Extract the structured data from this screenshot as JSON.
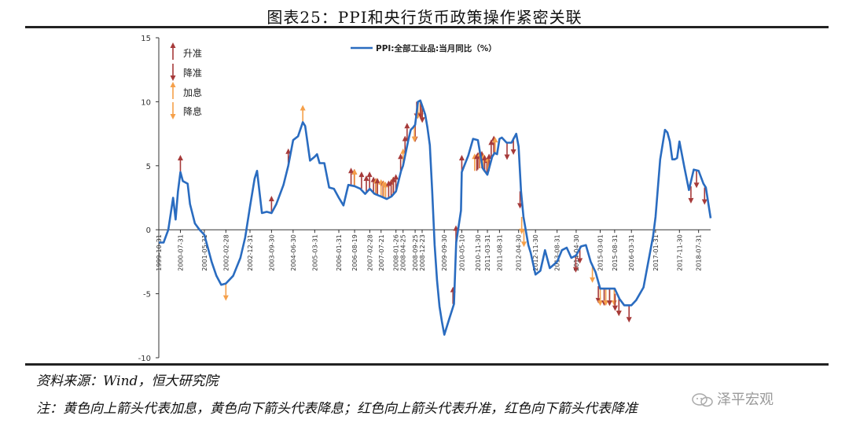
{
  "header": {
    "title": "图表25：PPI和央行货币政策操作紧密关联"
  },
  "footer": {
    "source": "资料来源：Wind，恒大研究院",
    "note": "注：黄色向上箭头代表加息，黄色向下箭头代表降息；红色向上箭头代表升准，红色向下箭头代表降准",
    "watermark": "泽平宏观"
  },
  "colors": {
    "line": "#2a6cc0",
    "rrr": "#a63a3a",
    "rate": "#f5a04a",
    "axis": "#333333",
    "text": "#111111"
  },
  "chart_data": {
    "type": "line",
    "title": "",
    "xlabel": "",
    "ylabel": "",
    "ylim": [
      -10,
      15
    ],
    "yticks": [
      -10,
      -5,
      0,
      5,
      10,
      15
    ],
    "x_range": [
      "1999-10-31",
      "2018-12-31"
    ],
    "xticks": [
      "1999-10-31",
      "2000-07-31",
      "2001-05-31",
      "2002-02-28",
      "2002-12-31",
      "2003-09-30",
      "2004-06-30",
      "2005-03-31",
      "2006-01-31",
      "2006-08-19",
      "2007-02-28",
      "2007-07-21",
      "2008-01-26",
      "2008-04-25",
      "2008-09-25",
      "2008-12-23",
      "2009-09-30",
      "2010-05-10",
      "2010-11-30",
      "2011-03-31",
      "2011-08-31",
      "2012-04-30",
      "2012-11-30",
      "2013-08-31",
      "2014-04-30",
      "2015-03-01",
      "2015-08-31",
      "2016-03-31",
      "2017-01-31",
      "2017-11-30",
      "2018-07-31"
    ],
    "grid": false,
    "legend": {
      "position": "top-center",
      "entries": [
        {
          "name": "PPI:全部工业品:当月同比（%）",
          "kind": "line"
        },
        {
          "name": "升准",
          "kind": "rrr-up"
        },
        {
          "name": "降准",
          "kind": "rrr-down"
        },
        {
          "name": "加息",
          "kind": "rate-up"
        },
        {
          "name": "降息",
          "kind": "rate-down"
        }
      ]
    },
    "series": [
      {
        "name": "PPI:全部工业品:当月同比（%）",
        "points": [
          [
            "1999-10-31",
            -1.0
          ],
          [
            "1999-12-31",
            -1.0
          ],
          [
            "2000-02-29",
            0.0
          ],
          [
            "2000-04-30",
            2.5
          ],
          [
            "2000-05-31",
            0.8
          ],
          [
            "2000-06-30",
            3.0
          ],
          [
            "2000-07-31",
            4.5
          ],
          [
            "2000-08-31",
            3.8
          ],
          [
            "2000-10-31",
            3.6
          ],
          [
            "2000-11-30",
            2.0
          ],
          [
            "2001-01-31",
            0.5
          ],
          [
            "2001-03-31",
            0.0
          ],
          [
            "2001-05-31",
            -0.4
          ],
          [
            "2001-08-31",
            -2.5
          ],
          [
            "2001-10-31",
            -3.6
          ],
          [
            "2001-12-31",
            -4.3
          ],
          [
            "2002-02-28",
            -4.2
          ],
          [
            "2002-05-31",
            -3.6
          ],
          [
            "2002-08-31",
            -2.2
          ],
          [
            "2002-10-31",
            -0.6
          ],
          [
            "2002-12-31",
            1.8
          ],
          [
            "2003-02-28",
            4.0
          ],
          [
            "2003-03-31",
            4.6
          ],
          [
            "2003-05-31",
            1.3
          ],
          [
            "2003-07-31",
            1.4
          ],
          [
            "2003-09-30",
            1.3
          ],
          [
            "2003-11-30",
            2.0
          ],
          [
            "2004-02-29",
            3.5
          ],
          [
            "2004-04-30",
            5.0
          ],
          [
            "2004-06-30",
            7.0
          ],
          [
            "2004-08-31",
            7.3
          ],
          [
            "2004-10-31",
            8.4
          ],
          [
            "2004-11-30",
            8.1
          ],
          [
            "2005-01-31",
            5.4
          ],
          [
            "2005-03-31",
            5.7
          ],
          [
            "2005-04-30",
            5.9
          ],
          [
            "2005-05-31",
            5.2
          ],
          [
            "2005-07-31",
            5.2
          ],
          [
            "2005-09-30",
            3.3
          ],
          [
            "2005-11-30",
            3.2
          ],
          [
            "2006-01-31",
            2.5
          ],
          [
            "2006-03-31",
            1.9
          ],
          [
            "2006-05-31",
            3.5
          ],
          [
            "2006-08-19",
            3.4
          ],
          [
            "2006-10-31",
            3.2
          ],
          [
            "2006-12-31",
            2.8
          ],
          [
            "2007-02-28",
            3.2
          ],
          [
            "2007-04-30",
            2.8
          ],
          [
            "2007-07-21",
            2.6
          ],
          [
            "2007-09-30",
            2.4
          ],
          [
            "2007-11-30",
            2.6
          ],
          [
            "2008-01-26",
            3.0
          ],
          [
            "2008-03-31",
            4.6
          ],
          [
            "2008-04-25",
            5.0
          ],
          [
            "2008-06-30",
            7.0
          ],
          [
            "2008-07-31",
            7.8
          ],
          [
            "2008-08-31",
            8.0
          ],
          [
            "2008-09-25",
            8.2
          ],
          [
            "2008-10-31",
            10.0
          ],
          [
            "2008-11-30",
            10.1
          ],
          [
            "2008-12-23",
            9.7
          ],
          [
            "2009-01-31",
            9.0
          ],
          [
            "2009-02-28",
            8.0
          ],
          [
            "2009-03-31",
            6.6
          ],
          [
            "2009-04-30",
            3.0
          ],
          [
            "2009-05-31",
            -1.2
          ],
          [
            "2009-06-30",
            -4.0
          ],
          [
            "2009-07-31",
            -6.0
          ],
          [
            "2009-08-31",
            -7.2
          ],
          [
            "2009-09-30",
            -8.2
          ],
          [
            "2009-11-30",
            -7.0
          ],
          [
            "2010-01-31",
            -5.8
          ],
          [
            "2010-02-28",
            -1.0
          ],
          [
            "2010-04-30",
            1.5
          ],
          [
            "2010-05-10",
            4.5
          ],
          [
            "2010-07-31",
            5.8
          ],
          [
            "2010-09-30",
            7.1
          ],
          [
            "2010-11-30",
            7.0
          ],
          [
            "2011-01-31",
            4.8
          ],
          [
            "2011-03-31",
            4.3
          ],
          [
            "2011-05-31",
            5.7
          ],
          [
            "2011-06-30",
            6.0
          ],
          [
            "2011-07-31",
            5.9
          ],
          [
            "2011-08-31",
            7.1
          ],
          [
            "2011-09-30",
            7.2
          ],
          [
            "2011-11-30",
            6.8
          ],
          [
            "2012-01-31",
            6.8
          ],
          [
            "2012-03-31",
            7.5
          ],
          [
            "2012-04-30",
            6.5
          ],
          [
            "2012-05-31",
            3.0
          ],
          [
            "2012-06-30",
            1.0
          ],
          [
            "2012-08-31",
            -1.2
          ],
          [
            "2012-09-30",
            -1.8
          ],
          [
            "2012-11-30",
            -3.5
          ],
          [
            "2013-01-31",
            -3.2
          ],
          [
            "2013-03-31",
            -1.6
          ],
          [
            "2013-05-31",
            -3.0
          ],
          [
            "2013-08-31",
            -2.5
          ],
          [
            "2013-10-31",
            -1.6
          ],
          [
            "2013-12-31",
            -1.4
          ],
          [
            "2014-02-28",
            -2.2
          ],
          [
            "2014-04-30",
            -2.0
          ],
          [
            "2014-06-30",
            -1.3
          ],
          [
            "2014-08-31",
            -1.2
          ],
          [
            "2014-10-31",
            -2.5
          ],
          [
            "2014-12-31",
            -3.3
          ],
          [
            "2015-03-01",
            -4.6
          ],
          [
            "2015-05-31",
            -4.6
          ],
          [
            "2015-08-31",
            -4.6
          ],
          [
            "2015-10-31",
            -5.4
          ],
          [
            "2015-12-31",
            -5.9
          ],
          [
            "2016-03-31",
            -5.9
          ],
          [
            "2016-05-31",
            -5.5
          ],
          [
            "2016-08-31",
            -4.5
          ],
          [
            "2016-10-31",
            -2.5
          ],
          [
            "2016-12-31",
            -0.5
          ],
          [
            "2017-01-31",
            1.0
          ],
          [
            "2017-03-31",
            5.5
          ],
          [
            "2017-05-31",
            7.8
          ],
          [
            "2017-06-30",
            7.6
          ],
          [
            "2017-07-31",
            6.9
          ],
          [
            "2017-08-31",
            5.5
          ],
          [
            "2017-09-30",
            5.5
          ],
          [
            "2017-10-31",
            5.6
          ],
          [
            "2017-11-30",
            6.9
          ],
          [
            "2018-01-31",
            4.9
          ],
          [
            "2018-03-31",
            3.1
          ],
          [
            "2018-05-31",
            4.7
          ],
          [
            "2018-07-31",
            4.6
          ],
          [
            "2018-09-30",
            3.6
          ],
          [
            "2018-10-31",
            3.3
          ],
          [
            "2018-12-31",
            0.9
          ]
        ]
      }
    ],
    "markers": [
      {
        "x": "2000-07-31",
        "y": 4.5,
        "type": "rrr-up"
      },
      {
        "x": "2002-02-28",
        "y": -4.2,
        "type": "rate-down"
      },
      {
        "x": "2003-09-30",
        "y": 1.3,
        "type": "rrr-up"
      },
      {
        "x": "2004-04-30",
        "y": 5.0,
        "type": "rrr-up"
      },
      {
        "x": "2004-10-31",
        "y": 8.4,
        "type": "rate-up"
      },
      {
        "x": "2006-07-05",
        "y": 3.5,
        "type": "rrr-up"
      },
      {
        "x": "2006-08-15",
        "y": 3.4,
        "type": "rrr-up"
      },
      {
        "x": "2006-08-19",
        "y": 3.4,
        "type": "rate-up"
      },
      {
        "x": "2006-11-15",
        "y": 3.2,
        "type": "rrr-up"
      },
      {
        "x": "2007-01-15",
        "y": 2.9,
        "type": "rrr-up"
      },
      {
        "x": "2007-02-25",
        "y": 3.2,
        "type": "rrr-up"
      },
      {
        "x": "2007-04-16",
        "y": 2.8,
        "type": "rrr-up"
      },
      {
        "x": "2007-05-15",
        "y": 2.7,
        "type": "rrr-up"
      },
      {
        "x": "2007-05-19",
        "y": 2.7,
        "type": "rate-up"
      },
      {
        "x": "2007-06-05",
        "y": 2.7,
        "type": "rrr-up"
      },
      {
        "x": "2007-07-21",
        "y": 2.6,
        "type": "rate-up"
      },
      {
        "x": "2007-08-15",
        "y": 2.5,
        "type": "rrr-up"
      },
      {
        "x": "2007-08-22",
        "y": 2.5,
        "type": "rate-up"
      },
      {
        "x": "2007-09-15",
        "y": 2.4,
        "type": "rrr-up"
      },
      {
        "x": "2007-09-15",
        "y": 2.4,
        "type": "rate-up"
      },
      {
        "x": "2007-10-25",
        "y": 2.5,
        "type": "rrr-up"
      },
      {
        "x": "2007-11-26",
        "y": 2.6,
        "type": "rrr-up"
      },
      {
        "x": "2007-12-21",
        "y": 2.8,
        "type": "rate-up"
      },
      {
        "x": "2007-12-25",
        "y": 2.8,
        "type": "rrr-up"
      },
      {
        "x": "2008-01-25",
        "y": 3.0,
        "type": "rrr-up"
      },
      {
        "x": "2008-03-25",
        "y": 4.6,
        "type": "rrr-up"
      },
      {
        "x": "2008-04-25",
        "y": 5.0,
        "type": "rate-up"
      },
      {
        "x": "2008-05-20",
        "y": 6.0,
        "type": "rrr-up"
      },
      {
        "x": "2008-06-15",
        "y": 7.0,
        "type": "rrr-up"
      },
      {
        "x": "2008-09-25",
        "y": 8.2,
        "type": "rrr-down"
      },
      {
        "x": "2008-09-16",
        "y": 8.2,
        "type": "rate-down"
      },
      {
        "x": "2008-10-15",
        "y": 10.0,
        "type": "rrr-down"
      },
      {
        "x": "2008-10-30",
        "y": 10.0,
        "type": "rate-down"
      },
      {
        "x": "2008-11-27",
        "y": 10.1,
        "type": "rate-down"
      },
      {
        "x": "2008-12-05",
        "y": 10.0,
        "type": "rrr-down"
      },
      {
        "x": "2008-12-23",
        "y": 9.7,
        "type": "rate-down"
      },
      {
        "x": "2008-12-25",
        "y": 9.7,
        "type": "rrr-down"
      },
      {
        "x": "2010-01-18",
        "y": -5.8,
        "type": "rrr-up"
      },
      {
        "x": "2010-02-25",
        "y": -1.0,
        "type": "rrr-up"
      },
      {
        "x": "2010-05-10",
        "y": 4.5,
        "type": "rrr-up"
      },
      {
        "x": "2010-10-20",
        "y": 4.6,
        "type": "rate-up"
      },
      {
        "x": "2010-11-16",
        "y": 4.6,
        "type": "rrr-up"
      },
      {
        "x": "2010-11-29",
        "y": 4.7,
        "type": "rrr-up"
      },
      {
        "x": "2010-12-20",
        "y": 4.8,
        "type": "rrr-up"
      },
      {
        "x": "2010-12-26",
        "y": 4.8,
        "type": "rate-up"
      },
      {
        "x": "2011-01-20",
        "y": 4.8,
        "type": "rrr-up"
      },
      {
        "x": "2011-02-09",
        "y": 4.6,
        "type": "rate-up"
      },
      {
        "x": "2011-02-24",
        "y": 4.5,
        "type": "rrr-up"
      },
      {
        "x": "2011-03-25",
        "y": 4.3,
        "type": "rrr-up"
      },
      {
        "x": "2011-04-06",
        "y": 4.4,
        "type": "rate-up"
      },
      {
        "x": "2011-04-21",
        "y": 4.6,
        "type": "rrr-up"
      },
      {
        "x": "2011-05-18",
        "y": 5.7,
        "type": "rrr-up"
      },
      {
        "x": "2011-06-20",
        "y": 6.0,
        "type": "rrr-up"
      },
      {
        "x": "2011-07-07",
        "y": 5.9,
        "type": "rate-up"
      },
      {
        "x": "2011-12-05",
        "y": 6.8,
        "type": "rrr-down"
      },
      {
        "x": "2012-02-24",
        "y": 7.2,
        "type": "rrr-down"
      },
      {
        "x": "2012-05-18",
        "y": 3.0,
        "type": "rrr-down"
      },
      {
        "x": "2012-06-08",
        "y": 1.0,
        "type": "rate-down"
      },
      {
        "x": "2012-07-06",
        "y": 0.0,
        "type": "rate-down"
      },
      {
        "x": "2014-04-25",
        "y": -2.0,
        "type": "rrr-down"
      },
      {
        "x": "2014-06-16",
        "y": -1.3,
        "type": "rrr-down"
      },
      {
        "x": "2014-11-22",
        "y": -2.8,
        "type": "rate-down"
      },
      {
        "x": "2015-02-05",
        "y": -4.4,
        "type": "rrr-down"
      },
      {
        "x": "2015-03-01",
        "y": -4.6,
        "type": "rate-down"
      },
      {
        "x": "2015-04-20",
        "y": -4.6,
        "type": "rrr-down"
      },
      {
        "x": "2015-05-11",
        "y": -4.6,
        "type": "rate-down"
      },
      {
        "x": "2015-06-28",
        "y": -4.6,
        "type": "rate-down"
      },
      {
        "x": "2015-06-28",
        "y": -4.6,
        "type": "rrr-down"
      },
      {
        "x": "2015-08-26",
        "y": -4.6,
        "type": "rate-down"
      },
      {
        "x": "2015-09-06",
        "y": -5.0,
        "type": "rrr-down"
      },
      {
        "x": "2015-10-24",
        "y": -5.4,
        "type": "rate-down"
      },
      {
        "x": "2015-10-24",
        "y": -5.4,
        "type": "rrr-down"
      },
      {
        "x": "2016-03-01",
        "y": -5.9,
        "type": "rrr-down"
      },
      {
        "x": "2018-04-25",
        "y": 3.4,
        "type": "rrr-down"
      },
      {
        "x": "2018-07-05",
        "y": 4.6,
        "type": "rrr-down"
      },
      {
        "x": "2018-10-15",
        "y": 3.3,
        "type": "rrr-down"
      }
    ]
  }
}
